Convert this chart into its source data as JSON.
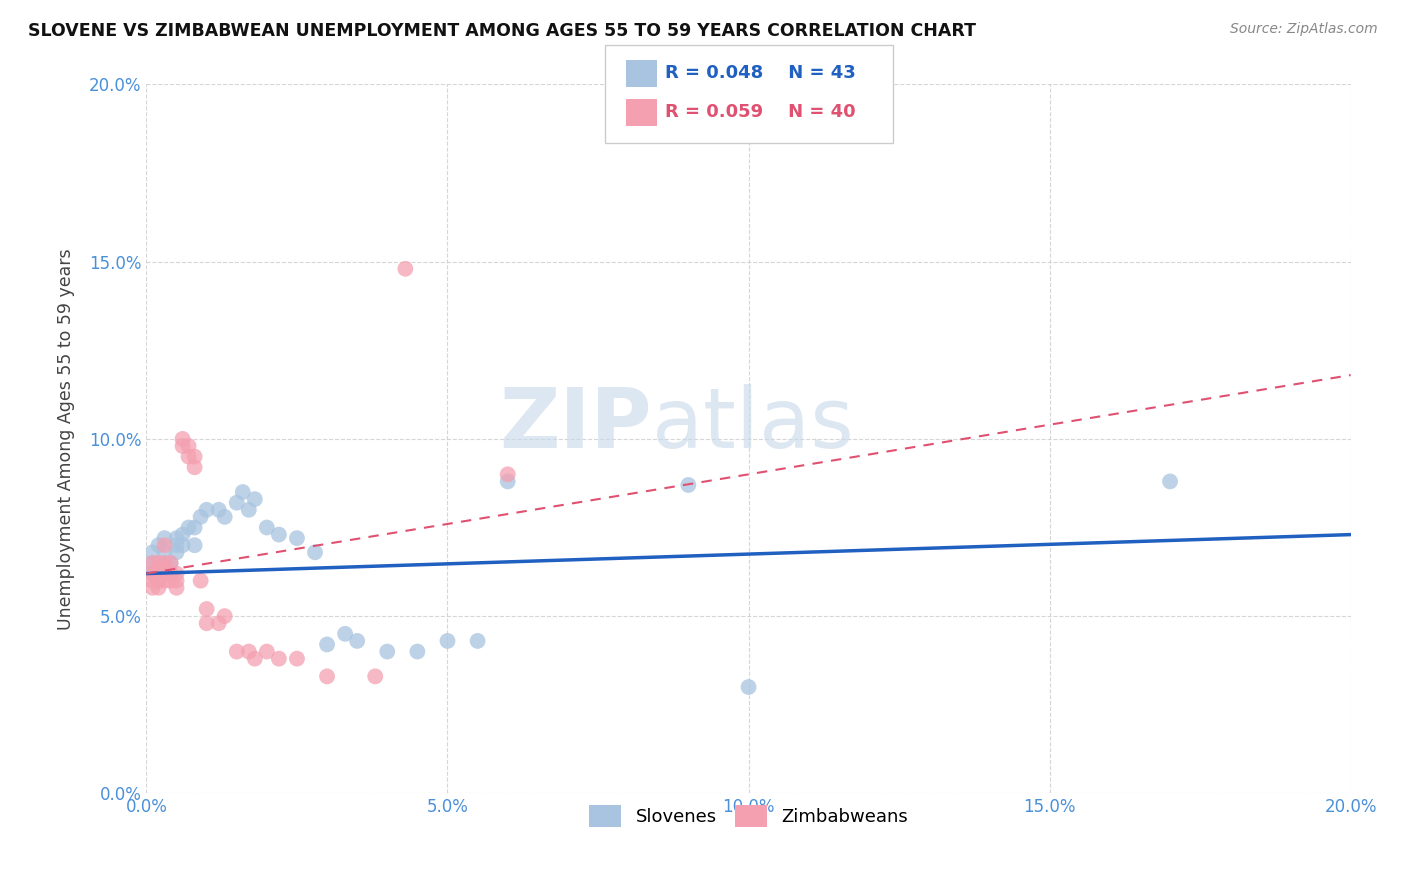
{
  "title": "SLOVENE VS ZIMBABWEAN UNEMPLOYMENT AMONG AGES 55 TO 59 YEARS CORRELATION CHART",
  "source_text": "Source: ZipAtlas.com",
  "ylabel": "Unemployment Among Ages 55 to 59 years",
  "xlim": [
    0.0,
    0.2
  ],
  "ylim": [
    0.0,
    0.2
  ],
  "legend_labels": [
    "Slovenes",
    "Zimbabweans"
  ],
  "legend_R": [
    "R = 0.048",
    "R = 0.059"
  ],
  "legend_N": [
    "N = 43",
    "N = 40"
  ],
  "slovene_color": "#a8c4e0",
  "zimbabwe_color": "#f4a0b0",
  "slovene_line_color": "#2060c0",
  "zimbabwe_line_color": "#e05070",
  "watermark_zip": "ZIP",
  "watermark_atlas": "atlas",
  "slovene_x": [
    0.001,
    0.001,
    0.001,
    0.002,
    0.002,
    0.002,
    0.002,
    0.003,
    0.003,
    0.003,
    0.004,
    0.004,
    0.005,
    0.005,
    0.005,
    0.006,
    0.006,
    0.007,
    0.008,
    0.008,
    0.009,
    0.01,
    0.012,
    0.013,
    0.015,
    0.016,
    0.017,
    0.018,
    0.02,
    0.022,
    0.025,
    0.028,
    0.03,
    0.033,
    0.035,
    0.04,
    0.045,
    0.05,
    0.055,
    0.06,
    0.09,
    0.1,
    0.17
  ],
  "slovene_y": [
    0.062,
    0.065,
    0.068,
    0.06,
    0.063,
    0.065,
    0.07,
    0.065,
    0.068,
    0.072,
    0.062,
    0.065,
    0.068,
    0.07,
    0.072,
    0.07,
    0.073,
    0.075,
    0.07,
    0.075,
    0.078,
    0.08,
    0.08,
    0.078,
    0.082,
    0.085,
    0.08,
    0.083,
    0.075,
    0.073,
    0.072,
    0.068,
    0.042,
    0.045,
    0.043,
    0.04,
    0.04,
    0.043,
    0.043,
    0.088,
    0.087,
    0.03,
    0.088
  ],
  "zimbabwe_x": [
    0.001,
    0.001,
    0.001,
    0.001,
    0.002,
    0.002,
    0.002,
    0.002,
    0.002,
    0.003,
    0.003,
    0.003,
    0.003,
    0.004,
    0.004,
    0.004,
    0.005,
    0.005,
    0.005,
    0.006,
    0.006,
    0.007,
    0.007,
    0.008,
    0.008,
    0.009,
    0.01,
    0.01,
    0.012,
    0.013,
    0.015,
    0.017,
    0.018,
    0.02,
    0.022,
    0.025,
    0.03,
    0.038,
    0.043,
    0.06
  ],
  "zimbabwe_y": [
    0.062,
    0.06,
    0.058,
    0.065,
    0.06,
    0.063,
    0.058,
    0.065,
    0.063,
    0.065,
    0.063,
    0.06,
    0.07,
    0.065,
    0.062,
    0.06,
    0.06,
    0.062,
    0.058,
    0.098,
    0.1,
    0.095,
    0.098,
    0.092,
    0.095,
    0.06,
    0.052,
    0.048,
    0.048,
    0.05,
    0.04,
    0.04,
    0.038,
    0.04,
    0.038,
    0.038,
    0.033,
    0.033,
    0.148,
    0.09
  ],
  "slovene_line_x0": 0.0,
  "slovene_line_y0": 0.062,
  "slovene_line_x1": 0.2,
  "slovene_line_y1": 0.073,
  "zimbabwe_line_x0": 0.0,
  "zimbabwe_line_y0": 0.062,
  "zimbabwe_line_x1": 0.2,
  "zimbabwe_line_y1": 0.118
}
